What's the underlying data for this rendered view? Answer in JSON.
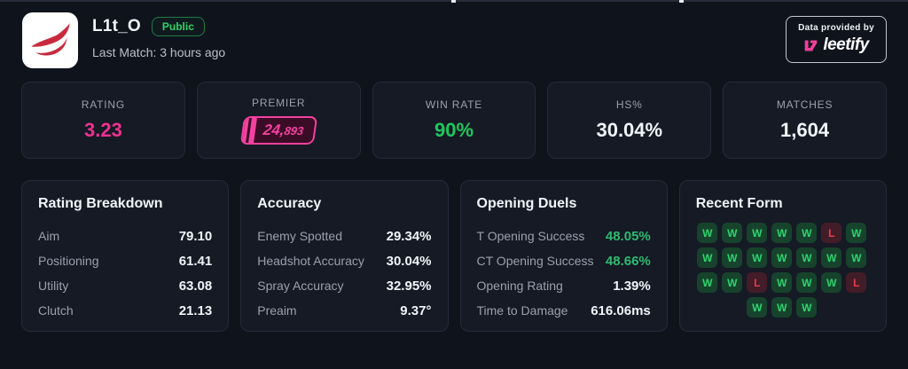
{
  "colors": {
    "page_bg": "#0f131c",
    "card_bg": "#151a25",
    "card_border": "#242b39",
    "pink": "#f0308f",
    "premier_pink": "#f4419f",
    "green": "#1ec95d",
    "green_soft": "#2eba70",
    "win_text": "#2cd470",
    "loss_text": "#ea3a4c",
    "badge_green": "#2fd36a",
    "logo_red": "#c8293c"
  },
  "header": {
    "username": "L1t_O",
    "visibility": "Public",
    "last_match": "Last Match: 3 hours ago",
    "avatar_icon": "team-spirit-bird-logo",
    "provider": {
      "caption": "Data provided by",
      "brand": "leetify"
    }
  },
  "stats": [
    {
      "label": "RATING",
      "value": "3.23"
    },
    {
      "label": "PREMIER",
      "value": "24,893",
      "value_main": "24,",
      "value_small": "893"
    },
    {
      "label": "WIN RATE",
      "value": "90%"
    },
    {
      "label": "HS%",
      "value": "30.04%"
    },
    {
      "label": "MATCHES",
      "value": "1,604"
    }
  ],
  "panels": [
    {
      "title": "Rating Breakdown",
      "rows": [
        {
          "label": "Aim",
          "value": "79.10"
        },
        {
          "label": "Positioning",
          "value": "61.41"
        },
        {
          "label": "Utility",
          "value": "63.08"
        },
        {
          "label": "Clutch",
          "value": "21.13"
        }
      ]
    },
    {
      "title": "Accuracy",
      "rows": [
        {
          "label": "Enemy Spotted",
          "value": "29.34%"
        },
        {
          "label": "Headshot Accuracy",
          "value": "30.04%"
        },
        {
          "label": "Spray Accuracy",
          "value": "32.95%"
        },
        {
          "label": "Preaim",
          "value": "9.37°"
        }
      ]
    },
    {
      "title": "Opening Duels",
      "rows": [
        {
          "label": "T Opening Success",
          "value": "48.05%",
          "highlight": "green"
        },
        {
          "label": "CT Opening Success",
          "value": "48.66%",
          "highlight": "green"
        },
        {
          "label": "Opening Rating",
          "value": "1.39%"
        },
        {
          "label": "Time to Damage",
          "value": "616.06ms"
        }
      ]
    },
    {
      "title": "Recent Form",
      "results": [
        "W",
        "W",
        "W",
        "W",
        "W",
        "L",
        "W",
        "W",
        "W",
        "W",
        "W",
        "W",
        "W",
        "W",
        "W",
        "W",
        "L",
        "W",
        "W",
        "W",
        "L",
        "W",
        "W",
        "W"
      ]
    }
  ]
}
